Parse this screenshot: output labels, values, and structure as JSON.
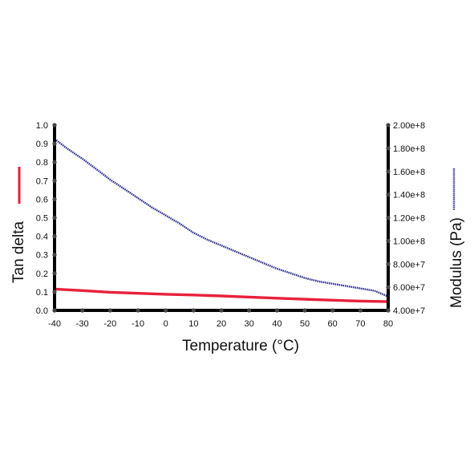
{
  "chart_data": {
    "type": "line",
    "xlabel": "Temperature (°C)",
    "ylabel_left": "Tan delta",
    "ylabel_right": "Modulus (Pa)",
    "x_ticks": [
      "-40",
      "-30",
      "-20",
      "-10",
      "0",
      "10",
      "20",
      "30",
      "40",
      "50",
      "60",
      "70",
      "80"
    ],
    "xlim": [
      -40,
      80
    ],
    "ylim_left": [
      0.0,
      1.0
    ],
    "y_left_ticks": [
      "0.0",
      "0.1",
      "0.2",
      "0.3",
      "0.4",
      "0.5",
      "0.6",
      "0.7",
      "0.8",
      "0.9",
      "1.0"
    ],
    "ylim_right": [
      40000000,
      200000000
    ],
    "y_right_ticks": [
      {
        "label": "2.00e+8",
        "value": 200000000
      },
      {
        "label": "1.80e+8",
        "value": 180000000
      },
      {
        "label": "1.60e+8",
        "value": 160000000
      },
      {
        "label": "1.40e+8",
        "value": 140000000
      },
      {
        "label": "1.20e+8",
        "value": 120000000
      },
      {
        "label": "1.00e+8",
        "value": 100000000
      },
      {
        "label": "8.00e+7",
        "value": 80000000
      },
      {
        "label": "6.00e+7",
        "value": 60000000
      },
      {
        "label": "4.00e+7",
        "value": 40000000
      }
    ],
    "series": [
      {
        "name": "Tan delta",
        "axis": "left",
        "color": "#e8213a",
        "x": [
          -40,
          -30,
          -20,
          -10,
          0,
          10,
          20,
          30,
          40,
          50,
          60,
          70,
          80
        ],
        "y": [
          0.115,
          0.107,
          0.098,
          0.092,
          0.087,
          0.083,
          0.078,
          0.072,
          0.066,
          0.06,
          0.055,
          0.05,
          0.047
        ]
      },
      {
        "name": "Modulus (Pa)",
        "axis": "right",
        "color": "#2e2f8f",
        "x": [
          -40,
          -35,
          -30,
          -25,
          -20,
          -15,
          -10,
          -5,
          0,
          5,
          10,
          15,
          20,
          25,
          30,
          35,
          40,
          45,
          50,
          55,
          60,
          65,
          70,
          75,
          80
        ],
        "y": [
          188000000,
          179000000,
          171000000,
          162000000,
          153000000,
          145000000,
          137000000,
          129000000,
          122000000,
          115000000,
          107000000,
          101000000,
          96000000,
          91000000,
          86000000,
          81000000,
          76000000,
          72000000,
          68000000,
          65000000,
          63000000,
          61000000,
          59000000,
          57000000,
          52000000
        ]
      }
    ]
  }
}
